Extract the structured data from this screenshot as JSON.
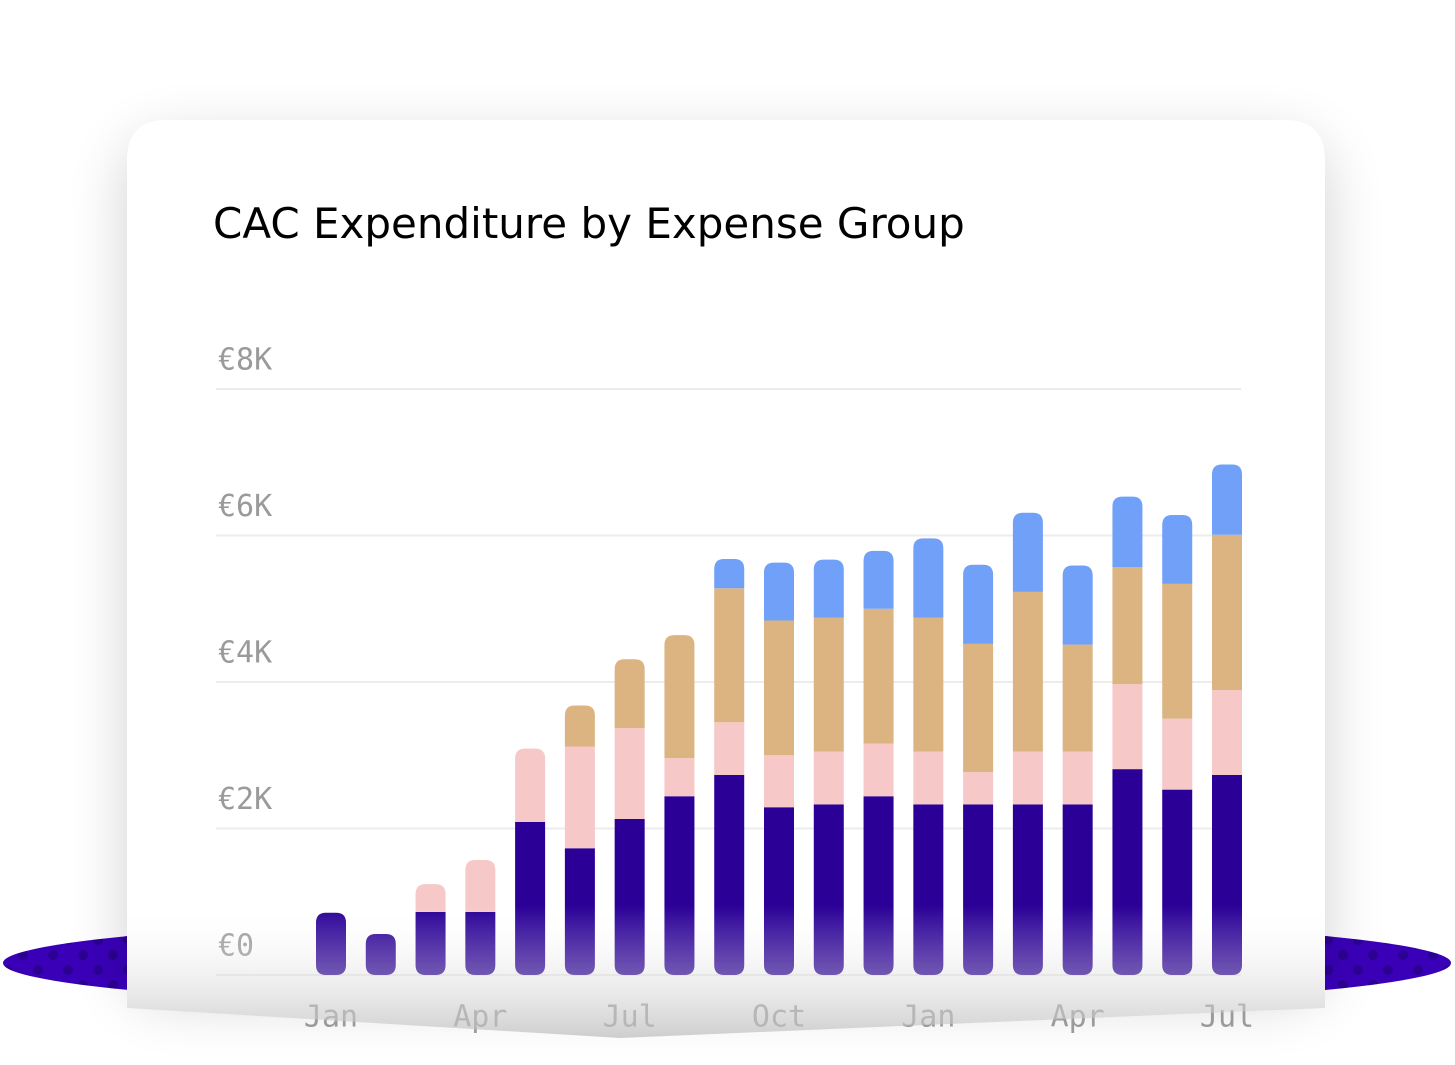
{
  "chart_data": {
    "type": "stacked-bar",
    "title": "CAC Expenditure by Expense Group",
    "categories": [
      "Jan",
      null,
      null,
      "Apr",
      null,
      null,
      "Jul",
      null,
      null,
      "Oct",
      null,
      null,
      "Jan",
      null,
      null,
      "Apr",
      null,
      null,
      "Jul"
    ],
    "series": [
      {
        "color": "#2a0096",
        "values": [
          850,
          560,
          860,
          860,
          2090,
          1730,
          2130,
          2440,
          2730,
          2290,
          2330,
          2440,
          2330,
          2330,
          2330,
          2330,
          2810,
          2530,
          2730
        ]
      },
      {
        "color": "#f7c8c8",
        "values": [
          0,
          0,
          380,
          710,
          1000,
          1390,
          1240,
          520,
          720,
          710,
          720,
          720,
          720,
          440,
          720,
          720,
          1160,
          970,
          1160
        ]
      },
      {
        "color": "#dbb482",
        "values": [
          0,
          0,
          0,
          0,
          0,
          560,
          940,
          1680,
          1830,
          1840,
          1830,
          1840,
          1830,
          1750,
          2180,
          1460,
          1600,
          1840,
          2120
        ]
      },
      {
        "color": "#70a0f8",
        "values": [
          0,
          0,
          0,
          0,
          0,
          0,
          0,
          0,
          400,
          790,
          790,
          790,
          1080,
          1080,
          1080,
          1080,
          960,
          940,
          960
        ]
      }
    ],
    "ylim": [
      0,
      8000
    ],
    "yticks": [
      {
        "value": 0,
        "label": "€0"
      },
      {
        "value": 2000,
        "label": "€2K"
      },
      {
        "value": 4000,
        "label": "€4K"
      },
      {
        "value": 6000,
        "label": "€6K"
      },
      {
        "value": 8000,
        "label": "€8K"
      }
    ],
    "grid": true
  }
}
